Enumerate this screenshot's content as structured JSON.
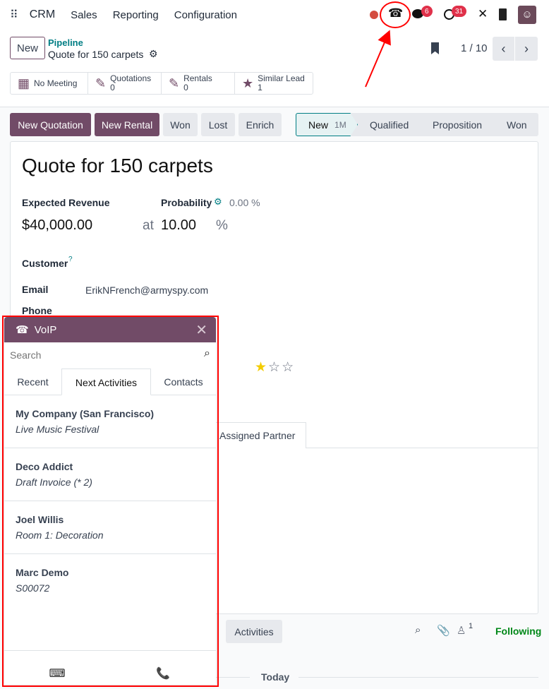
{
  "nav": {
    "menu": [
      "CRM",
      "Sales",
      "Reporting",
      "Configuration"
    ],
    "messages_count": "6",
    "activities_count": "31"
  },
  "control": {
    "new_label": "New",
    "breadcrumb_parent": "Pipeline",
    "breadcrumb_current": "Quote for 150 carpets",
    "pager": "1 / 10"
  },
  "stats": [
    {
      "label": "No Meeting",
      "value": ""
    },
    {
      "label": "Quotations",
      "value": "0"
    },
    {
      "label": "Rentals",
      "value": "0"
    },
    {
      "label": "Similar Lead",
      "value": "1"
    }
  ],
  "actions": [
    "New Quotation",
    "New Rental",
    "Won",
    "Lost",
    "Enrich"
  ],
  "stages": [
    {
      "label": "New",
      "duration": "1M",
      "active": true
    },
    {
      "label": "Qualified"
    },
    {
      "label": "Proposition"
    },
    {
      "label": "Won"
    }
  ],
  "form": {
    "title": "Quote for 150 carpets",
    "expected_revenue_label": "Expected Revenue",
    "expected_revenue": "$40,000.00",
    "at": "at",
    "probability_label": "Probability",
    "probability_auto": "0.00 %",
    "probability": "10.00",
    "percent": "%",
    "customer_label": "Customer",
    "customer_help": "?",
    "email_label": "Email",
    "email": "ErikNFrench@armyspy.com",
    "phone_label": "Phone",
    "priority_stars": 1,
    "tab_visible": "Assigned Partner"
  },
  "chatter": {
    "activities_label": "Activities",
    "followers_count": "1",
    "following_label": "Following",
    "today_label": "Today"
  },
  "voip": {
    "title": "VoIP",
    "search_placeholder": "Search",
    "tabs": [
      "Recent",
      "Next Activities",
      "Contacts"
    ],
    "active_tab": "Next Activities",
    "items": [
      {
        "name": "My Company (San Francisco)",
        "sub": "Live Music Festival"
      },
      {
        "name": "Deco Addict",
        "sub": "Draft Invoice (* 2)"
      },
      {
        "name": "Joel Willis",
        "sub": "Room 1: Decoration"
      },
      {
        "name": "Marc Demo",
        "sub": "S00072"
      }
    ]
  },
  "colors": {
    "brand": "#714b67",
    "annotation": "#ff0000",
    "link": "#017e84",
    "following": "#008818"
  }
}
